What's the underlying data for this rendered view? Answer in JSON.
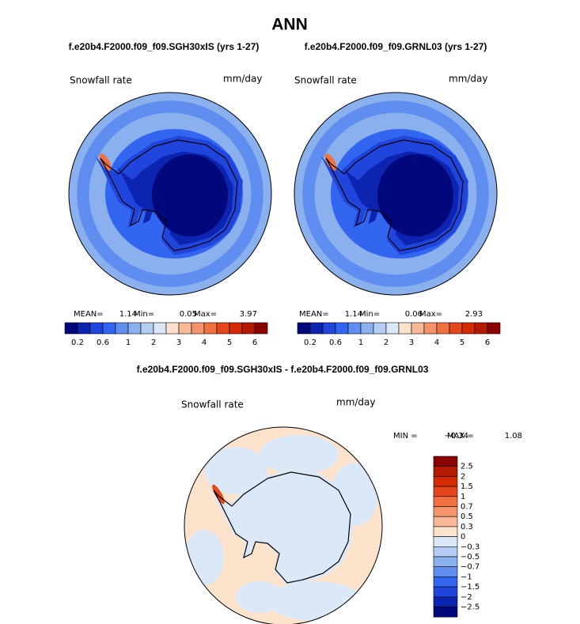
{
  "title": "ANN",
  "panels": [
    {
      "subtitle": "f.e20b4.F2000.f09_f09.SGH30xIS (yrs 1-27)",
      "label": "Snowfall rate",
      "units": "mm/day",
      "stats": [
        {
          "label": "MEAN=",
          "value": "1.14"
        },
        {
          "label": "Min=",
          "value": "0.05"
        },
        {
          "label": "Max=",
          "value": "3.97"
        }
      ]
    },
    {
      "subtitle": "f.e20b4.F2000.f09_f09.GRNL03 (yrs 1-27)",
      "label": "Snowfall rate",
      "units": "mm/day",
      "stats": [
        {
          "label": "MEAN=",
          "value": "1.14"
        },
        {
          "label": "Min=",
          "value": "0.06"
        },
        {
          "label": "Max=",
          "value": "2.93"
        }
      ]
    }
  ],
  "colorbar": {
    "labels": [
      "0.2",
      "0.6",
      "1",
      "2",
      "3",
      "4",
      "5",
      "6"
    ],
    "colors": [
      "#00087c",
      "#0d24b0",
      "#1f45dd",
      "#3366f0",
      "#5f8ef0",
      "#8ab0ee",
      "#b4cdf2",
      "#dbe8f7",
      "#fde2cc",
      "#f9b898",
      "#f5946a",
      "#f0703f",
      "#e6461c",
      "#d42a00",
      "#b31a00",
      "#8b0000"
    ]
  },
  "difference": {
    "subtitle": "f.e20b4.F2000.f09_f09.SGH30xIS - f.e20b4.F2000.f09_f09.GRNL03",
    "label": "Snowfall rate",
    "units": "mm/day",
    "stats": [
      {
        "label": "MIN =",
        "value": "−0.34"
      },
      {
        "label": "MAX =",
        "value": "1.08"
      }
    ],
    "colorbar": {
      "labels": [
        "2.5",
        "2",
        "1.5",
        "1",
        "0.7",
        "0.5",
        "0.3",
        "0",
        "−0.3",
        "−0.5",
        "−0.7",
        "−1",
        "−1.5",
        "−2",
        "−2.5"
      ],
      "colors": [
        "#8b0000",
        "#b31a00",
        "#d42a00",
        "#e6461c",
        "#f0703f",
        "#f5946a",
        "#f9b898",
        "#fde2cc",
        "#dbe8f7",
        "#b4cdf2",
        "#8ab0ee",
        "#5f8ef0",
        "#3366f0",
        "#1f45dd",
        "#0d24b0",
        "#00087c"
      ]
    }
  }
}
